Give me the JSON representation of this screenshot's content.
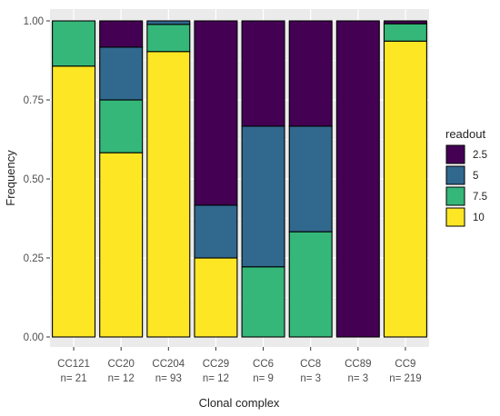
{
  "chart_data": {
    "type": "bar",
    "stacked": true,
    "xlabel": "Clonal complex",
    "ylabel": "Frequency",
    "ylim": [
      0,
      1
    ],
    "yticks": [
      "0.00",
      "0.25",
      "0.50",
      "0.75",
      "1.00"
    ],
    "grid": true,
    "categories": [
      "CC121",
      "CC20",
      "CC204",
      "CC29",
      "CC6",
      "CC8",
      "CC89",
      "CC9"
    ],
    "category_counts": [
      "n= 21",
      "n= 12",
      "n= 93",
      "n= 12",
      "n= 9",
      "n= 3",
      "n= 3",
      "n= 219"
    ],
    "legend": {
      "title": "readout",
      "placement": "right"
    },
    "series": [
      {
        "name": "10",
        "color": "#FDE725",
        "values": [
          0.857,
          0.583,
          0.903,
          0.25,
          0.0,
          0.0,
          0.0,
          0.936
        ]
      },
      {
        "name": "7.5",
        "color": "#35B779",
        "values": [
          0.143,
          0.167,
          0.086,
          0.0,
          0.222,
          0.333,
          0.0,
          0.055
        ]
      },
      {
        "name": "5",
        "color": "#31688E",
        "values": [
          0.0,
          0.167,
          0.011,
          0.167,
          0.445,
          0.334,
          0.0,
          0.0
        ]
      },
      {
        "name": "2.5",
        "color": "#440154",
        "values": [
          0.0,
          0.083,
          0.0,
          0.583,
          0.333,
          0.333,
          1.0,
          0.009
        ]
      }
    ],
    "legend_order": [
      "2.5",
      "5",
      "7.5",
      "10"
    ]
  }
}
